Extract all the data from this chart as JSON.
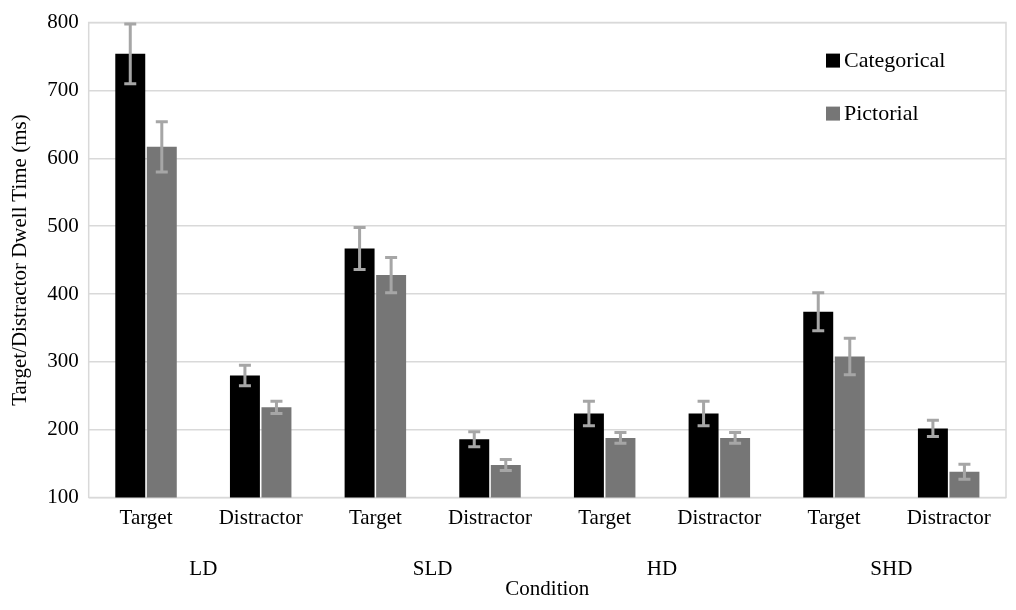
{
  "chart_data": {
    "type": "bar",
    "xlabel": "Condition",
    "ylabel": "Target/Distractor Dwell Time (ms)",
    "categories": [
      "Target",
      "Distractor",
      "Target",
      "Distractor",
      "Target",
      "Distractor",
      "Target",
      "Distractor"
    ],
    "annotations": [
      "LD",
      "SLD",
      "HD",
      "SHD"
    ],
    "series": [
      {
        "name": "Categorical",
        "color": "#000000",
        "values": [
          754,
          280,
          467,
          186,
          224,
          224,
          374,
          202
        ],
        "errors": [
          44,
          15,
          31,
          11,
          18,
          18,
          28,
          12
        ]
      },
      {
        "name": "Pictorial",
        "color": "#767676",
        "values": [
          617,
          233,
          428,
          148,
          188,
          188,
          308,
          138
        ],
        "errors": [
          37,
          9,
          26,
          8,
          8,
          8,
          27,
          11
        ]
      }
    ],
    "ylim": [
      100,
      800
    ],
    "yticks": [
      100,
      200,
      300,
      400,
      500,
      600,
      700,
      800
    ],
    "grid": "y",
    "legend": "top right"
  }
}
